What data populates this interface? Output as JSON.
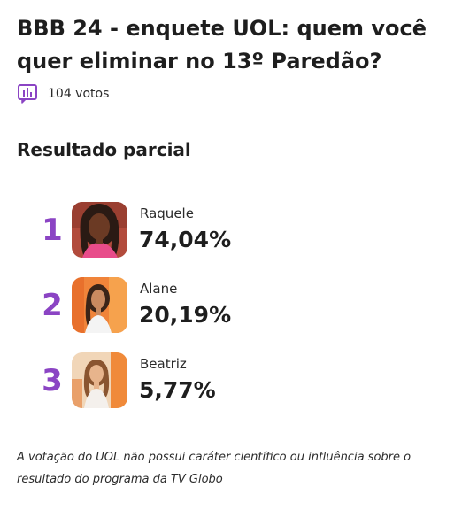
{
  "poll": {
    "title": "BBB 24 - enquete UOL: quem você quer eliminar no 13º Paredão?",
    "votes": "104 votos",
    "accent_color": "#8b44c4",
    "votes_icon": "bar-chart-icon"
  },
  "results": {
    "heading": "Resultado parcial",
    "items": [
      {
        "rank": "1",
        "name": "Raquele",
        "percent": "74,04%",
        "share": 74.04
      },
      {
        "rank": "2",
        "name": "Alane",
        "percent": "20,19%",
        "share": 20.19
      },
      {
        "rank": "3",
        "name": "Beatriz",
        "percent": "5,77%",
        "share": 5.77
      }
    ]
  },
  "footer": {
    "disclaimer": "A votação do UOL não possui caráter científico ou influência sobre o resultado do programa da TV Globo"
  }
}
